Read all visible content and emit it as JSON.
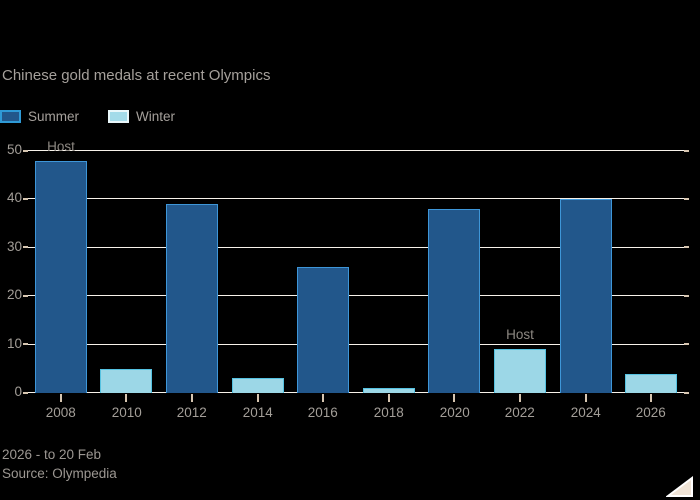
{
  "title": "Chinese gold medals at recent Olympics",
  "legend": [
    {
      "label": "Summer",
      "fill": "#22578b",
      "border": "#2f9ad6"
    },
    {
      "label": "Winter",
      "fill": "#a3dbe9",
      "border": "#e9f7fa"
    }
  ],
  "chart_data": {
    "type": "bar",
    "title": "Chinese gold medals at recent Olympics",
    "categories": [
      "2008",
      "2010",
      "2012",
      "2014",
      "2016",
      "2018",
      "2020",
      "2022",
      "2024",
      "2026"
    ],
    "series": [
      {
        "name": "Summer",
        "values": [
          48,
          null,
          39,
          null,
          26,
          null,
          38,
          null,
          40,
          null
        ]
      },
      {
        "name": "Winter",
        "values": [
          null,
          5,
          null,
          3,
          null,
          1,
          null,
          9,
          null,
          4
        ]
      }
    ],
    "annotations": [
      {
        "category": "2008",
        "label": "Host"
      },
      {
        "category": "2022",
        "label": "Host"
      }
    ],
    "xlabel": "",
    "ylabel": "",
    "ylim": [
      0,
      50
    ],
    "yticks": [
      0,
      10,
      20,
      30,
      40,
      50
    ],
    "grid": true,
    "legend_position": "top-left"
  },
  "footer": {
    "note": "2026 - to 20 Feb",
    "source": "Source: Olympedia"
  },
  "colors": {
    "background": "#000000",
    "summer_fill": "#22578b",
    "summer_border": "#3e96d8",
    "winter_fill": "#9cd7e7",
    "winter_border": "#55c2e1",
    "gridline": "#f7f2ea",
    "tick": "#d6c5b0",
    "text": "#a39e98",
    "annotation_text": "#8d8882",
    "triangle_fill": "#efe3d6",
    "triangle_stroke": "#ffffff"
  }
}
